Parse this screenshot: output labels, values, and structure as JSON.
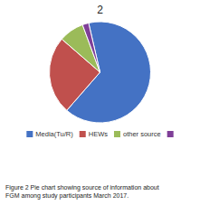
{
  "chart_data": {
    "type": "pie",
    "title": "2",
    "categories": [
      "Media(Tu/R)",
      "HEWs",
      "other source",
      null
    ],
    "values": [
      65,
      25,
      8,
      2
    ],
    "colors": [
      "#4472C4",
      "#C0504D",
      "#9BBB59",
      "#7F3F98"
    ],
    "legend": "bottom",
    "annotations": [
      "Figure 2 Pie chart showing source of information about\nFGM among study participants March 2017."
    ]
  }
}
